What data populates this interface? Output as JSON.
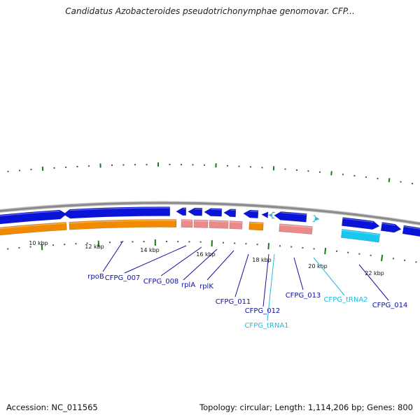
{
  "title": "Candidatus Azobacteroides pseudotrichonymphae genomovar. CFP...",
  "footer": {
    "accession": "Accession: NC_011565",
    "stats": "Topology: circular; Length: 1,114,206 bp; Genes: 800"
  },
  "colors": {
    "backbone": "#888888",
    "gene_blue": "#0a14d8",
    "cds_orange": "#f08a00",
    "rrna_pink": "#ec8a8a",
    "trna_cyan": "#18c8f0",
    "tick_green": "#1a7a1a",
    "label_navy": "#1010a0",
    "label_cyan": "#20b8e0"
  },
  "scale_ticks": [
    {
      "label": "10 kbp",
      "kbp": 10
    },
    {
      "label": "12 kbp",
      "kbp": 12
    },
    {
      "label": "14 kbp",
      "kbp": 14
    },
    {
      "label": "16 kbp",
      "kbp": 16
    },
    {
      "label": "18 kbp",
      "kbp": 18
    },
    {
      "label": "20 kbp",
      "kbp": 20
    },
    {
      "label": "22 kbp",
      "kbp": 22
    }
  ],
  "gene_labels": [
    {
      "name": "rpoB",
      "kind": "gene"
    },
    {
      "name": "CFPG_007",
      "kind": "gene"
    },
    {
      "name": "CFPG_008",
      "kind": "gene"
    },
    {
      "name": "rplA",
      "kind": "gene"
    },
    {
      "name": "rplK",
      "kind": "gene"
    },
    {
      "name": "CFPG_011",
      "kind": "gene"
    },
    {
      "name": "CFPG_012",
      "kind": "gene"
    },
    {
      "name": "CFPG_tRNA1",
      "kind": "trna"
    },
    {
      "name": "CFPG_013",
      "kind": "gene"
    },
    {
      "name": "CFPG_tRNA2",
      "kind": "trna"
    },
    {
      "name": "CFPG_014",
      "kind": "gene"
    }
  ]
}
